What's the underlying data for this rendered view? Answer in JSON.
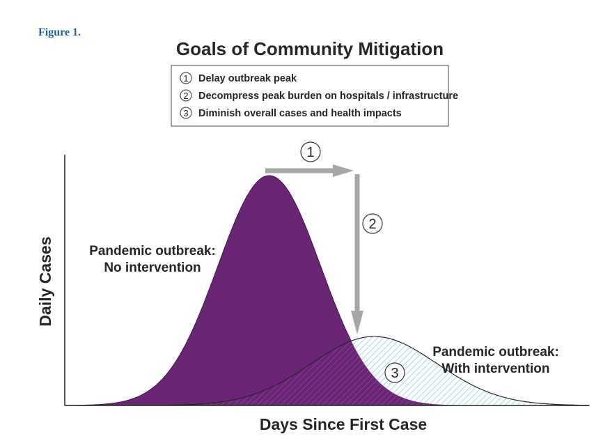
{
  "figure_label": "Figure 1.",
  "chart_data": {
    "type": "area",
    "title": "Goals of Community Mitigation",
    "xlabel": "Days Since First Case",
    "ylabel": "Daily Cases",
    "grid": false,
    "legend": {
      "placement": "top-center",
      "items": [
        {
          "marker": "1",
          "text": "Delay outbreak peak"
        },
        {
          "marker": "2",
          "text": "Decompress peak burden on hospitals / infrastructure"
        },
        {
          "marker": "3",
          "text": "Diminish overall cases and health impacts"
        }
      ]
    },
    "series": [
      {
        "label_lines": [
          "Pandemic outbreak:",
          "No intervention"
        ],
        "color": "#6a2675",
        "fill": "solid",
        "peak_x": 0.39,
        "peak_y": 1.0,
        "spread": 0.098
      },
      {
        "label_lines": [
          "Pandemic outbreak:",
          "With intervention"
        ],
        "color": "#a9d6e5",
        "fill": "hatched",
        "peak_x": 0.59,
        "peak_y": 0.3,
        "spread": 0.12
      }
    ],
    "annotations": [
      {
        "marker": "1",
        "text": "",
        "kind": "arrow-right"
      },
      {
        "marker": "2",
        "text": "",
        "kind": "arrow-down"
      },
      {
        "marker": "3",
        "text": "",
        "kind": "area-label"
      }
    ]
  }
}
